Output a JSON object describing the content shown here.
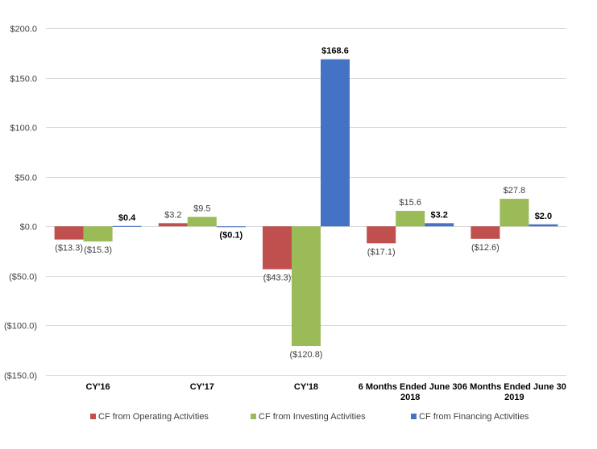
{
  "chart_data": {
    "type": "bar",
    "categories": [
      [
        "CY'16"
      ],
      [
        "CY'17"
      ],
      [
        "CY'18"
      ],
      [
        "6 Months Ended June 30",
        "2018"
      ],
      [
        "6 Months Ended June 30",
        "2019"
      ]
    ],
    "series": [
      {
        "name": "CF from Operating Activities",
        "color": "#C0504D",
        "values": [
          -13.3,
          3.2,
          -43.3,
          -17.1,
          -12.6
        ],
        "labels": [
          "($13.3)",
          "$3.2",
          "($43.3)",
          "($17.1)",
          "($12.6)"
        ]
      },
      {
        "name": "CF from Investing Activities",
        "color": "#9BBB59",
        "values": [
          -15.3,
          9.5,
          -120.8,
          15.6,
          27.8
        ],
        "labels": [
          "($15.3)",
          "$9.5",
          "($120.8)",
          "$15.6",
          "$27.8"
        ]
      },
      {
        "name": "CF from Financing Activities",
        "color": "#4472C4",
        "values": [
          0.4,
          -0.1,
          168.6,
          3.2,
          2.0
        ],
        "labels": [
          "$0.4",
          "($0.1)",
          "$168.6",
          "$3.2",
          "$2.0"
        ]
      }
    ],
    "y_ticks": [
      200,
      150,
      100,
      50,
      0,
      -50,
      -100,
      -150
    ],
    "y_tick_labels": [
      "$200.0",
      "$150.0",
      "$100.0",
      "$50.0",
      "$0.0",
      "($50.0)",
      "($100.0)",
      "($150.0)"
    ],
    "ylim": [
      -150,
      200
    ],
    "grid": true,
    "legend_position": "bottom",
    "gridline_color": "#D9D9D9"
  }
}
